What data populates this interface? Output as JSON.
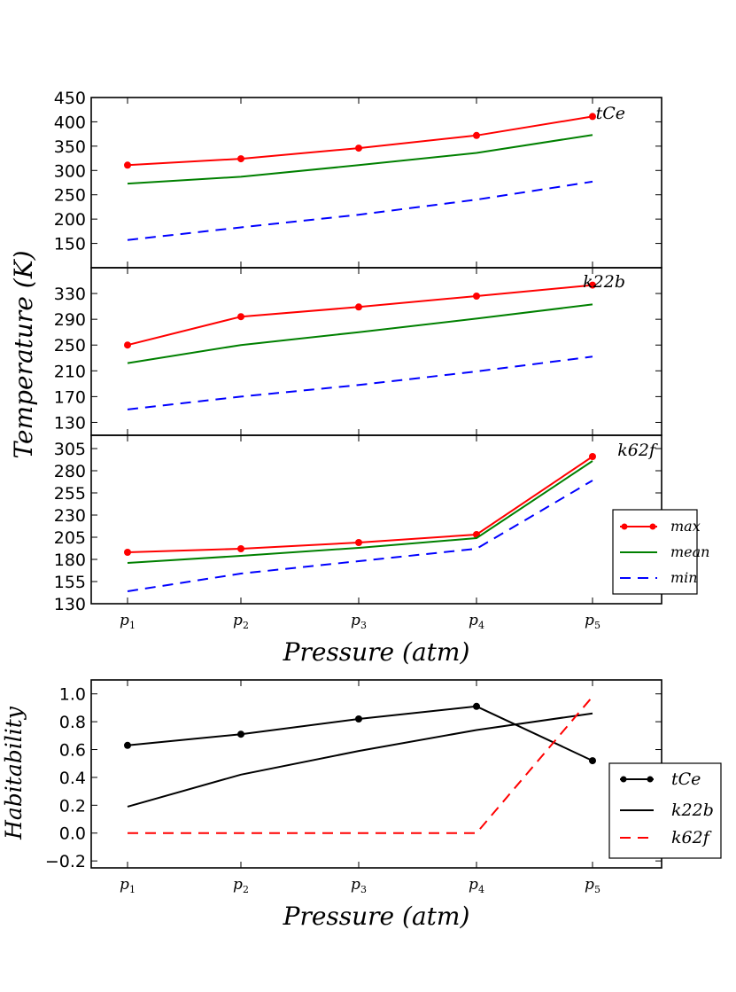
{
  "chart_data": [
    {
      "type": "line",
      "panel": "tCe",
      "x": [
        "p1",
        "p2",
        "p3",
        "p4",
        "p5"
      ],
      "series": [
        {
          "name": "max",
          "color": "#ff0000",
          "style": "solid-marker",
          "values": [
            311,
            324,
            346,
            372,
            411
          ]
        },
        {
          "name": "mean",
          "color": "#008000",
          "style": "solid",
          "values": [
            273,
            287,
            311,
            336,
            373
          ]
        },
        {
          "name": "min",
          "color": "#0000ff",
          "style": "dashed",
          "values": [
            157,
            183,
            209,
            240,
            277
          ]
        }
      ],
      "yticks": [
        150,
        200,
        250,
        300,
        350,
        400,
        450
      ],
      "ylim": [
        100,
        450
      ]
    },
    {
      "type": "line",
      "panel": "k22b",
      "x": [
        "p1",
        "p2",
        "p3",
        "p4",
        "p5"
      ],
      "series": [
        {
          "name": "max",
          "color": "#ff0000",
          "style": "solid-marker",
          "values": [
            250,
            294,
            309,
            326,
            343
          ]
        },
        {
          "name": "mean",
          "color": "#008000",
          "style": "solid",
          "values": [
            222,
            250,
            270,
            291,
            313
          ]
        },
        {
          "name": "min",
          "color": "#0000ff",
          "style": "dashed",
          "values": [
            150,
            170,
            188,
            209,
            232
          ]
        }
      ],
      "yticks": [
        130,
        170,
        210,
        250,
        290,
        330
      ],
      "ylim": [
        110,
        370
      ]
    },
    {
      "type": "line",
      "panel": "k62f",
      "x": [
        "p1",
        "p2",
        "p3",
        "p4",
        "p5"
      ],
      "series": [
        {
          "name": "max",
          "color": "#ff0000",
          "style": "solid-marker",
          "values": [
            188,
            192,
            199,
            208,
            296
          ]
        },
        {
          "name": "mean",
          "color": "#008000",
          "style": "solid",
          "values": [
            176,
            184,
            193,
            204,
            291
          ]
        },
        {
          "name": "min",
          "color": "#0000ff",
          "style": "dashed",
          "values": [
            144,
            164,
            178,
            192,
            269
          ]
        }
      ],
      "yticks": [
        130,
        155,
        180,
        205,
        230,
        255,
        280,
        305
      ],
      "ylim": [
        130,
        320
      ]
    },
    {
      "type": "line",
      "panel": "habitability",
      "x": [
        "p1",
        "p2",
        "p3",
        "p4",
        "p5"
      ],
      "series": [
        {
          "name": "tCe",
          "color": "#000000",
          "style": "solid-marker",
          "values": [
            0.63,
            0.71,
            0.82,
            0.91,
            0.52
          ]
        },
        {
          "name": "k22b",
          "color": "#000000",
          "style": "solid",
          "values": [
            0.19,
            0.42,
            0.59,
            0.74,
            0.86
          ]
        },
        {
          "name": "k62f",
          "color": "#ff0000",
          "style": "dashed",
          "values": [
            0.0,
            0.0,
            0.0,
            0.0,
            0.98
          ]
        }
      ],
      "yticks": [
        -0.2,
        0.0,
        0.2,
        0.4,
        0.6,
        0.8,
        1.0
      ],
      "ylim": [
        -0.25,
        1.1
      ]
    }
  ],
  "labels": {
    "temp_ylabel": "Temperature (K)",
    "xlabel_top": "Pressure (atm)",
    "hab_ylabel": "Habitability",
    "xlabel_bottom": "Pressure (atm)",
    "panel_tags": [
      "tCe",
      "k22b",
      "k62f"
    ],
    "legend_temp": [
      "max",
      "mean",
      "min"
    ],
    "legend_hab": [
      "tCe",
      "k22b",
      "k62f"
    ],
    "xtick_base": "p",
    "xtick_subs": [
      "1",
      "2",
      "3",
      "4",
      "5"
    ],
    "ytick_texts": [
      [
        "150",
        "200",
        "250",
        "300",
        "350",
        "400",
        "450"
      ],
      [
        "130",
        "170",
        "210",
        "250",
        "290",
        "330"
      ],
      [
        "130",
        "155",
        "180",
        "205",
        "230",
        "255",
        "280",
        "305"
      ],
      [
        "−0.2",
        "0.0",
        "0.2",
        "0.4",
        "0.6",
        "0.8",
        "1.0"
      ]
    ]
  }
}
